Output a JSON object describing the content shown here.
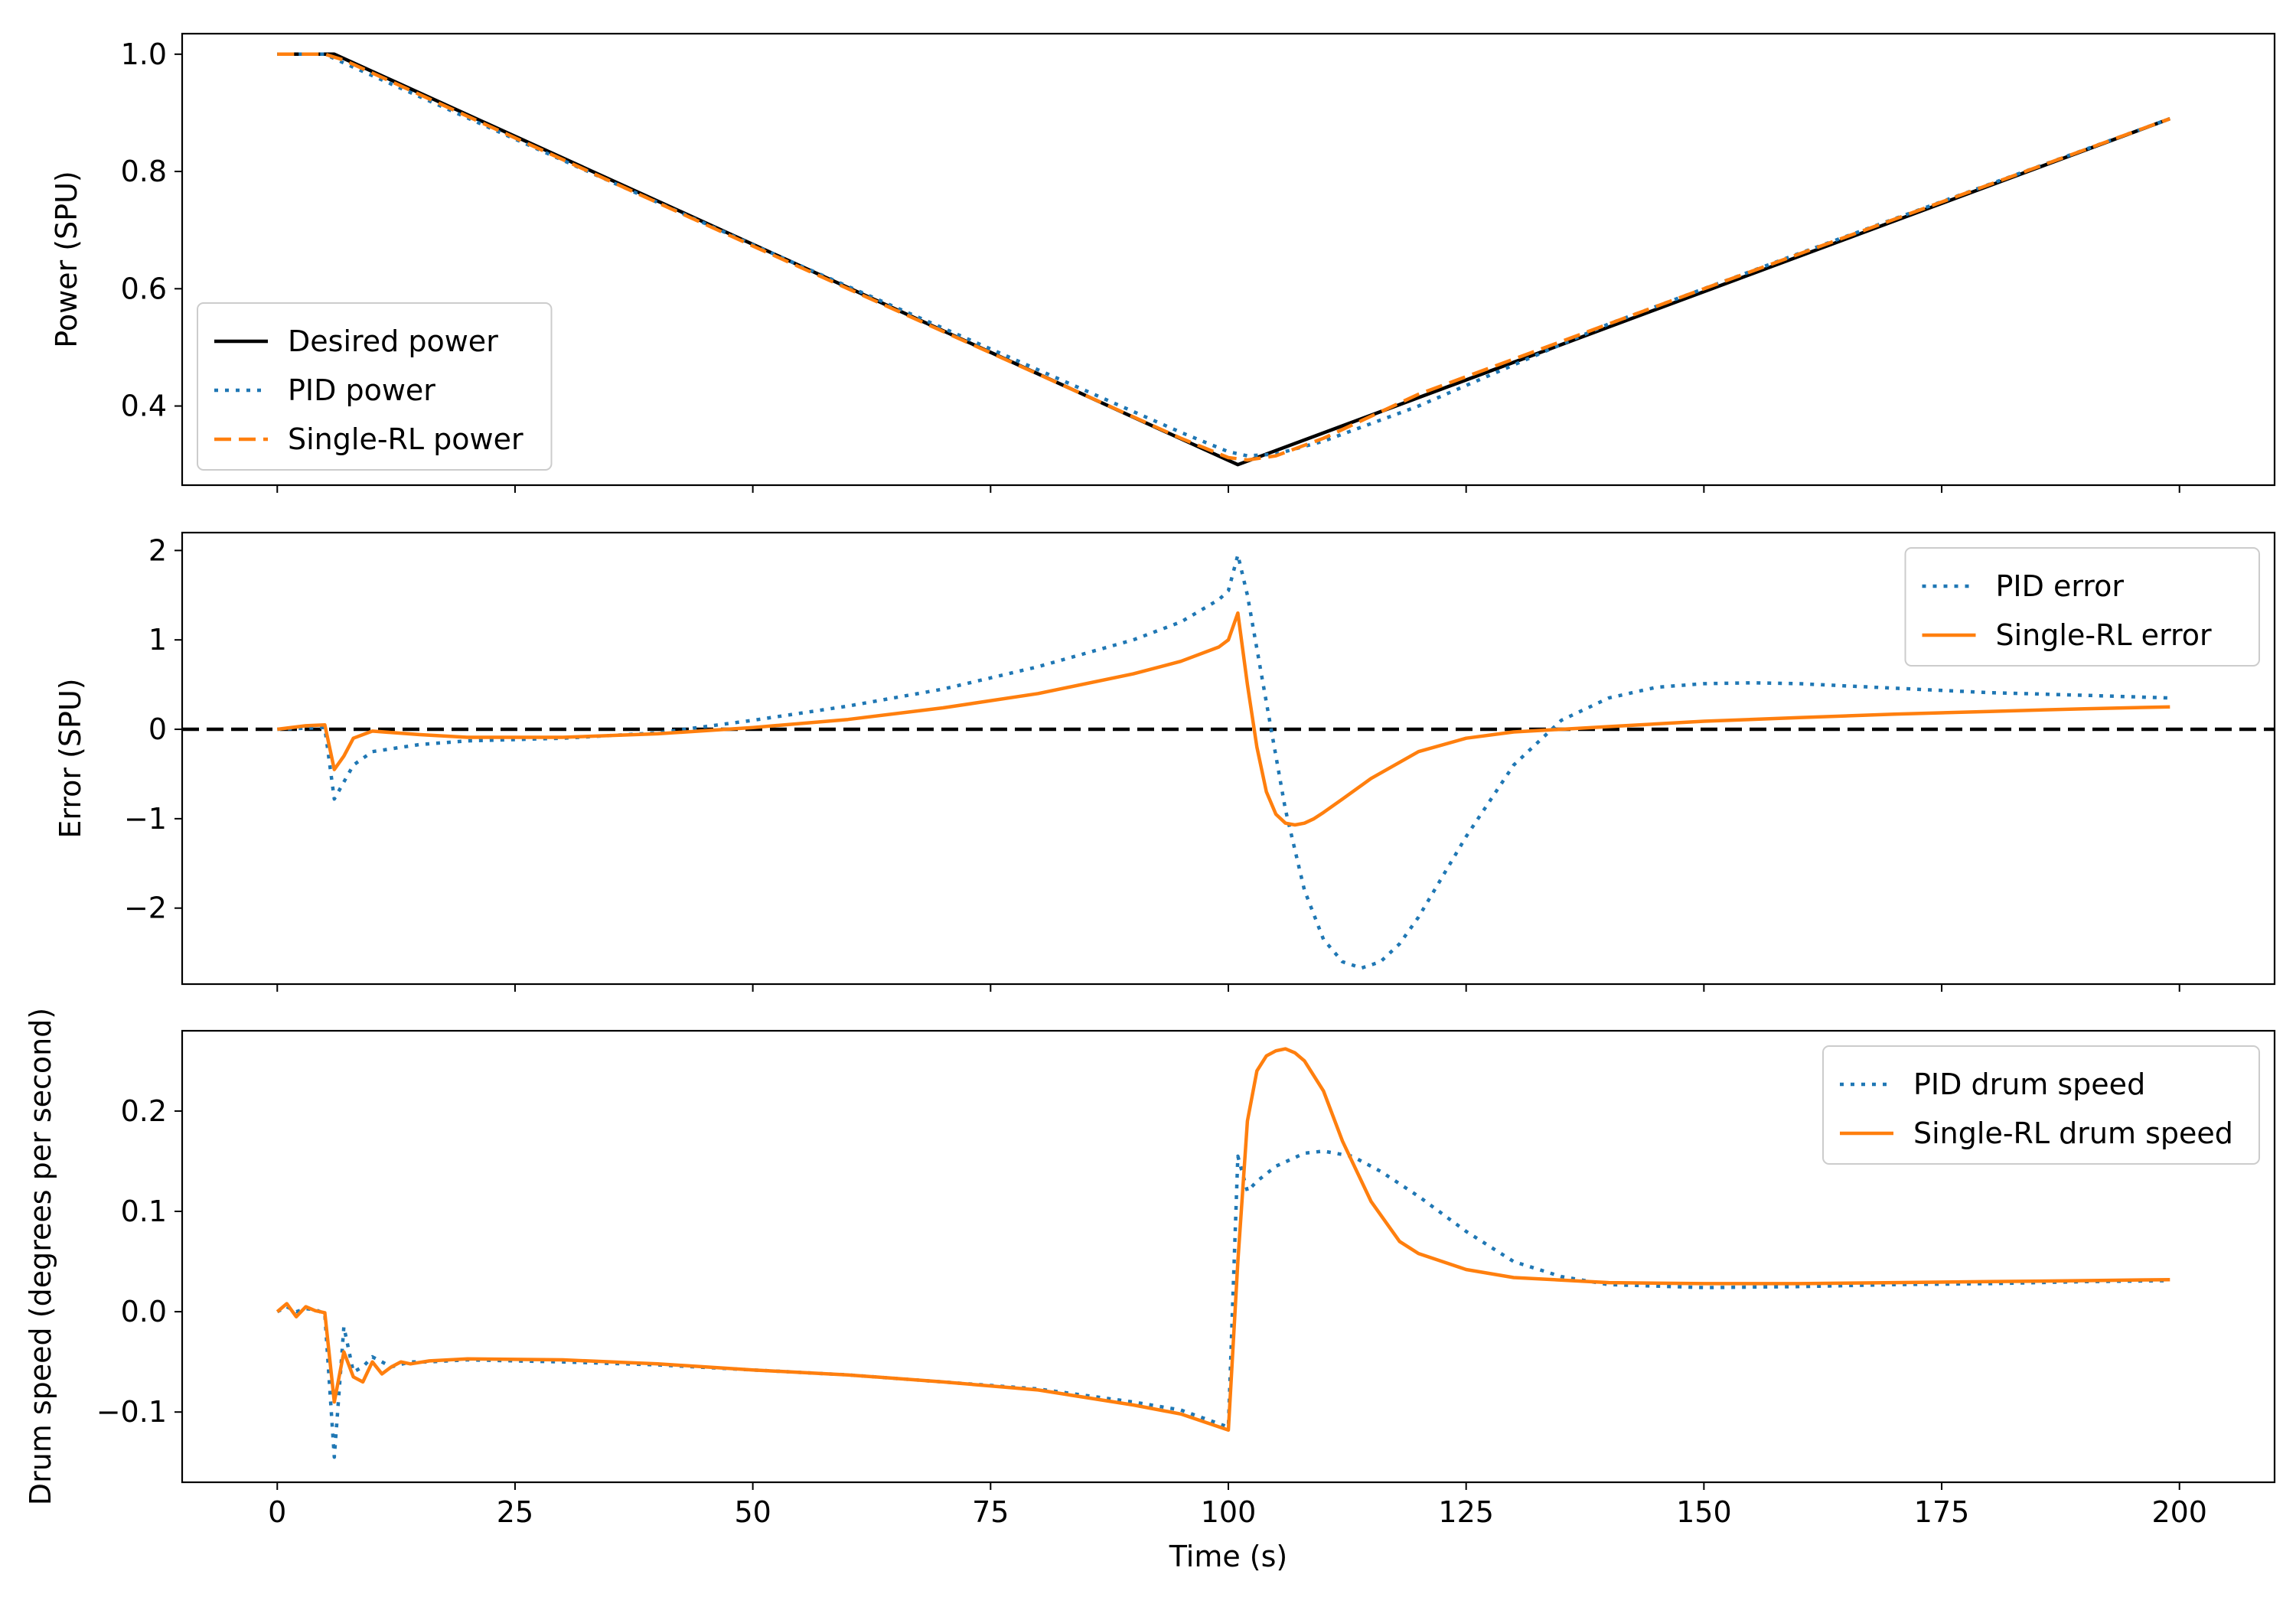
{
  "chart_data": [
    {
      "type": "line",
      "ylabel": "Power (SPU)",
      "xlabel": "",
      "xlim": [
        -10,
        210
      ],
      "ylim": [
        0.265,
        1.035
      ],
      "xticks": [
        0,
        25,
        50,
        75,
        100,
        125,
        150,
        175,
        200
      ],
      "show_xticklabels": false,
      "yticks": [
        0.4,
        0.6,
        0.8,
        1.0
      ],
      "ytick_labels": [
        "0.4",
        "0.6",
        "0.8",
        "1.0"
      ],
      "legend_position": "lower-left",
      "series": [
        {
          "name": "Desired power",
          "color": "#000000",
          "style": "solid",
          "x": [
            0,
            6,
            101,
            199
          ],
          "y": [
            1.0,
            1.0,
            0.3,
            0.89
          ]
        },
        {
          "name": "PID power",
          "color": "#1f77b4",
          "style": "dotted",
          "x": [
            0,
            5,
            7,
            50,
            95,
            100,
            102,
            105,
            110,
            120,
            130,
            140,
            160,
            199
          ],
          "y": [
            1.0,
            1.0,
            0.985,
            0.675,
            0.355,
            0.322,
            0.315,
            0.318,
            0.34,
            0.4,
            0.47,
            0.54,
            0.66,
            0.89
          ]
        },
        {
          "name": "Single-RL power",
          "color": "#ff7f0e",
          "style": "dashed",
          "x": [
            0,
            5,
            7,
            50,
            95,
            100,
            102,
            105,
            110,
            120,
            130,
            150,
            199
          ],
          "y": [
            1.0,
            1.0,
            0.99,
            0.673,
            0.345,
            0.312,
            0.308,
            0.315,
            0.345,
            0.42,
            0.48,
            0.6,
            0.89
          ]
        }
      ]
    },
    {
      "type": "line",
      "ylabel": "Error (SPU)",
      "xlabel": "",
      "xlim": [
        -10,
        210
      ],
      "ylim": [
        -2.85,
        2.2
      ],
      "xticks": [
        0,
        25,
        50,
        75,
        100,
        125,
        150,
        175,
        200
      ],
      "show_xticklabels": false,
      "yticks": [
        -2,
        -1,
        0,
        1,
        2
      ],
      "ytick_labels": [
        "−2",
        "−1",
        "0",
        "1",
        "2"
      ],
      "legend_position": "upper-right",
      "reference_line": {
        "y": 0,
        "color": "#000000",
        "style": "dashed"
      },
      "series": [
        {
          "name": "PID error",
          "color": "#1f77b4",
          "style": "dotted",
          "x": [
            0,
            5,
            6,
            8,
            10,
            15,
            20,
            30,
            40,
            50,
            60,
            70,
            80,
            90,
            95,
            99,
            100,
            101,
            102,
            104,
            106,
            108,
            110,
            112,
            114,
            116,
            118,
            120,
            125,
            130,
            135,
            140,
            145,
            150,
            155,
            160,
            170,
            180,
            190,
            199
          ],
          "y": [
            0.0,
            0.02,
            -0.78,
            -0.4,
            -0.25,
            -0.17,
            -0.13,
            -0.1,
            -0.04,
            0.1,
            0.26,
            0.45,
            0.7,
            1.0,
            1.2,
            1.45,
            1.55,
            1.95,
            1.5,
            0.3,
            -0.9,
            -1.8,
            -2.35,
            -2.6,
            -2.67,
            -2.6,
            -2.4,
            -2.1,
            -1.2,
            -0.4,
            0.1,
            0.35,
            0.47,
            0.51,
            0.52,
            0.51,
            0.46,
            0.41,
            0.38,
            0.35
          ]
        },
        {
          "name": "Single-RL error",
          "color": "#ff7f0e",
          "style": "solid",
          "x": [
            0,
            3,
            5,
            6,
            7,
            8,
            10,
            15,
            20,
            30,
            40,
            50,
            60,
            70,
            80,
            90,
            95,
            99,
            100,
            101,
            102,
            103,
            104,
            105,
            106,
            107,
            108,
            109,
            110,
            112,
            115,
            120,
            125,
            130,
            140,
            150,
            160,
            170,
            180,
            190,
            199
          ],
          "y": [
            0.0,
            0.04,
            0.05,
            -0.45,
            -0.3,
            -0.1,
            -0.02,
            -0.06,
            -0.09,
            -0.09,
            -0.05,
            0.02,
            0.11,
            0.24,
            0.4,
            0.62,
            0.76,
            0.92,
            1.0,
            1.3,
            0.5,
            -0.2,
            -0.7,
            -0.95,
            -1.05,
            -1.07,
            -1.05,
            -1.0,
            -0.93,
            -0.78,
            -0.55,
            -0.25,
            -0.1,
            -0.03,
            0.03,
            0.09,
            0.13,
            0.17,
            0.2,
            0.23,
            0.25
          ]
        }
      ]
    },
    {
      "type": "line",
      "ylabel": "Drum speed (degrees per second)",
      "xlabel": "Time (s)",
      "xlim": [
        -10,
        210
      ],
      "ylim": [
        -0.17,
        0.28
      ],
      "xticks": [
        0,
        25,
        50,
        75,
        100,
        125,
        150,
        175,
        200
      ],
      "xtick_labels": [
        "0",
        "25",
        "50",
        "75",
        "100",
        "125",
        "150",
        "175",
        "200"
      ],
      "show_xticklabels": true,
      "yticks": [
        -0.1,
        0.0,
        0.1,
        0.2
      ],
      "ytick_labels": [
        "−0.1",
        "0.0",
        "0.1",
        "0.2"
      ],
      "legend_position": "upper-right",
      "series": [
        {
          "name": "PID drum speed",
          "color": "#1f77b4",
          "style": "dotted",
          "x": [
            0,
            1,
            2,
            3,
            4,
            5,
            6,
            7,
            8,
            9,
            10,
            12,
            14,
            16,
            20,
            30,
            40,
            50,
            60,
            70,
            80,
            90,
            95,
            100,
            101,
            102,
            103,
            105,
            108,
            110,
            113,
            116,
            120,
            125,
            130,
            135,
            140,
            150,
            160,
            170,
            180,
            190,
            199
          ],
          "y": [
            0.0,
            0.005,
            0.0,
            0.003,
            0.002,
            -0.002,
            -0.145,
            -0.015,
            -0.06,
            -0.055,
            -0.045,
            -0.055,
            -0.05,
            -0.05,
            -0.048,
            -0.05,
            -0.053,
            -0.058,
            -0.063,
            -0.07,
            -0.077,
            -0.09,
            -0.098,
            -0.115,
            0.155,
            0.12,
            0.13,
            0.145,
            0.158,
            0.16,
            0.155,
            0.14,
            0.115,
            0.08,
            0.05,
            0.035,
            0.027,
            0.024,
            0.025,
            0.027,
            0.028,
            0.03,
            0.031
          ]
        },
        {
          "name": "Single-RL drum speed",
          "color": "#ff7f0e",
          "style": "solid",
          "x": [
            0,
            1,
            2,
            3,
            4,
            5,
            6,
            7,
            8,
            9,
            10,
            11,
            12,
            13,
            14,
            16,
            20,
            30,
            40,
            50,
            60,
            70,
            80,
            90,
            95,
            100,
            101,
            102,
            103,
            104,
            105,
            106,
            107,
            108,
            110,
            112,
            115,
            118,
            120,
            125,
            130,
            140,
            150,
            160,
            170,
            180,
            190,
            199
          ],
          "y": [
            0.0,
            0.008,
            -0.005,
            0.005,
            0.001,
            -0.001,
            -0.09,
            -0.04,
            -0.065,
            -0.07,
            -0.05,
            -0.062,
            -0.055,
            -0.05,
            -0.052,
            -0.049,
            -0.047,
            -0.048,
            -0.052,
            -0.058,
            -0.063,
            -0.07,
            -0.078,
            -0.093,
            -0.102,
            -0.118,
            0.05,
            0.19,
            0.24,
            0.255,
            0.26,
            0.262,
            0.258,
            0.25,
            0.22,
            0.17,
            0.11,
            0.07,
            0.058,
            0.042,
            0.034,
            0.029,
            0.028,
            0.028,
            0.029,
            0.03,
            0.031,
            0.032
          ]
        }
      ]
    }
  ]
}
